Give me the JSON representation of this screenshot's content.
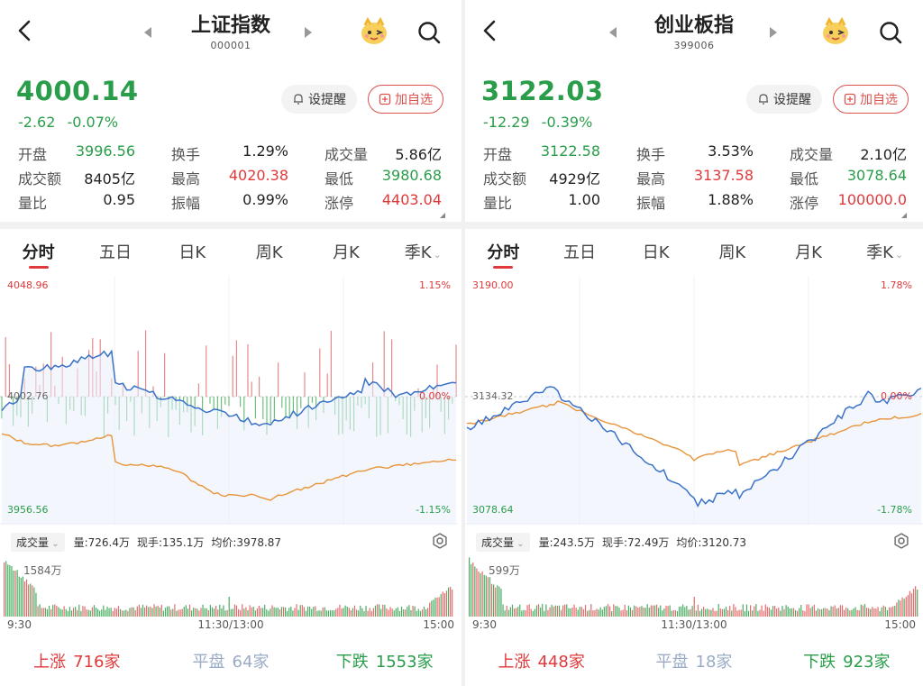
{
  "panels": [
    {
      "title": "上证指数",
      "code": "000001",
      "price": "4000.14",
      "change": "-2.62",
      "change_pct": "-0.07%",
      "alert_label": "设提醒",
      "add_label": "加自选",
      "stats": {
        "open_label": "开盘",
        "open": "3996.56",
        "turnover_rate_label": "换手",
        "turnover_rate": "1.29%",
        "volume_label": "成交量",
        "volume": "5.86亿",
        "amount_label": "成交额",
        "amount": "8405亿",
        "high_label": "最高",
        "high": "4020.38",
        "low_label": "最低",
        "low": "3980.68",
        "vol_ratio_label": "量比",
        "vol_ratio": "0.95",
        "amplitude_label": "振幅",
        "amplitude": "0.99%",
        "limit_up_label": "涨停",
        "limit_up": "4403.04"
      },
      "tabs": [
        "分时",
        "五日",
        "日K",
        "周K",
        "月K",
        "季K"
      ],
      "axis": {
        "top": "4048.96",
        "top_pct": "1.15%",
        "mid": "4002.76",
        "mid_pct": "0.00%",
        "bottom": "3956.56",
        "bottom_pct": "-1.15%"
      },
      "volume_bar": {
        "dropdown": "成交量",
        "volume": "量:726.4万",
        "current": "现手:135.1万",
        "avg": "均价:3978.87",
        "max": "1584万"
      },
      "times": [
        "9:30",
        "11:30/13:00",
        "15:00"
      ],
      "breadth": {
        "up_label": "上涨",
        "up": "716家",
        "flat_label": "平盘",
        "flat": "64家",
        "down_label": "下跌",
        "down": "1553家"
      }
    },
    {
      "title": "创业板指",
      "code": "399006",
      "price": "3122.03",
      "change": "-12.29",
      "change_pct": "-0.39%",
      "alert_label": "设提醒",
      "add_label": "加自选",
      "stats": {
        "open_label": "开盘",
        "open": "3122.58",
        "turnover_rate_label": "换手",
        "turnover_rate": "3.53%",
        "volume_label": "成交量",
        "volume": "2.10亿",
        "amount_label": "成交额",
        "amount": "4929亿",
        "high_label": "最高",
        "high": "3137.58",
        "low_label": "最低",
        "low": "3078.64",
        "vol_ratio_label": "量比",
        "vol_ratio": "1.00",
        "amplitude_label": "振幅",
        "amplitude": "1.88%",
        "limit_up_label": "涨停",
        "limit_up": "100000.0"
      },
      "tabs": [
        "分时",
        "五日",
        "日K",
        "周K",
        "月K",
        "季K"
      ],
      "axis": {
        "top": "3190.00",
        "top_pct": "1.78%",
        "mid": "3134.32",
        "mid_pct": "0.00%",
        "bottom": "3078.64",
        "bottom_pct": "-1.78%"
      },
      "volume_bar": {
        "dropdown": "成交量",
        "volume": "量:243.5万",
        "current": "现手:72.49万",
        "avg": "均价:3120.73",
        "max": "599万"
      },
      "times": [
        "9:30",
        "11:30/13:00",
        "15:00"
      ],
      "breadth": {
        "up_label": "上涨",
        "up": "448家",
        "flat_label": "平盘",
        "flat": "18家",
        "down_label": "下跌",
        "down": "923家"
      }
    }
  ],
  "colors": {
    "up": "#e0393b",
    "down": "#2a9d4a",
    "price_line": "#3a72c9",
    "avg_line": "#e8943a"
  }
}
